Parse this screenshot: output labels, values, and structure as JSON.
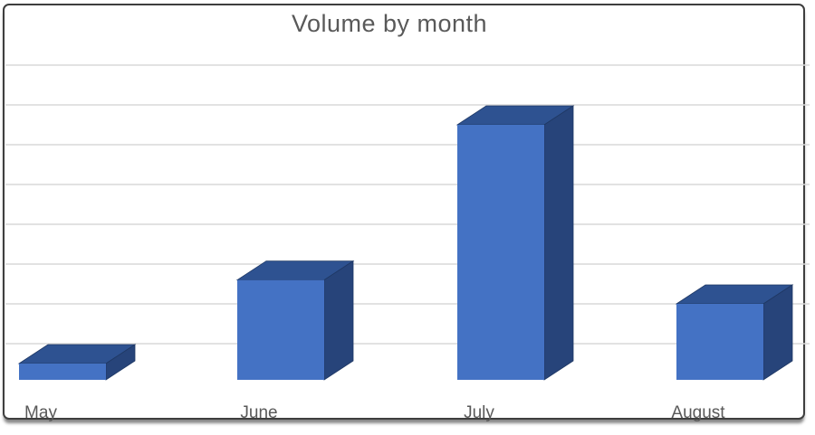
{
  "window": {
    "background": "#ffffff",
    "border_color": "#3E3E3E"
  },
  "chart_data": {
    "type": "bar",
    "variant": "3d-column",
    "title": "Volume by month",
    "categories": [
      "May",
      "June",
      "July",
      "August"
    ],
    "values": [
      5,
      26,
      65,
      20
    ],
    "xlabel": "",
    "ylabel": "",
    "ylim": [
      0,
      80
    ],
    "gridline_values": [
      10,
      20,
      30,
      40,
      50,
      60,
      70,
      80
    ],
    "grid": "horizontal",
    "legend": "none",
    "y_axis_labels_shown": false,
    "colors": {
      "bar_front": "#4472C4",
      "bar_top": "#2E5291",
      "bar_side": "#27447A",
      "bar_edge": "#1F3864",
      "gridline": "#D9D9D9",
      "text": "#595959"
    }
  }
}
